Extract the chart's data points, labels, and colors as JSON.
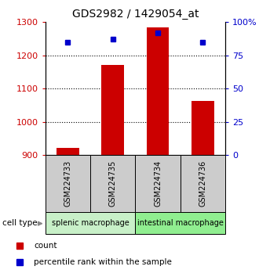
{
  "title": "GDS2982 / 1429054_at",
  "samples": [
    "GSM224733",
    "GSM224735",
    "GSM224734",
    "GSM224736"
  ],
  "counts": [
    921,
    1172,
    1285,
    1063
  ],
  "percentiles": [
    85,
    87,
    92,
    85
  ],
  "ylim_left": [
    900,
    1300
  ],
  "ylim_right": [
    0,
    100
  ],
  "yticks_left": [
    900,
    1000,
    1100,
    1200,
    1300
  ],
  "yticks_right": [
    0,
    25,
    50,
    75,
    100
  ],
  "ytick_right_labels": [
    "0",
    "25",
    "50",
    "75",
    "100%"
  ],
  "bar_color": "#cc0000",
  "dot_color": "#0000cc",
  "bar_width": 0.5,
  "groups": [
    {
      "label": "splenic macrophage",
      "indices": [
        0,
        1
      ],
      "color": "#c8f0c8"
    },
    {
      "label": "intestinal macrophage",
      "indices": [
        2,
        3
      ],
      "color": "#90ee90"
    }
  ],
  "cell_type_label": "cell type",
  "legend_count_label": "count",
  "legend_pct_label": "percentile rank within the sample",
  "sample_box_color": "#cccccc",
  "grid_yticks": [
    1000,
    1100,
    1200
  ]
}
